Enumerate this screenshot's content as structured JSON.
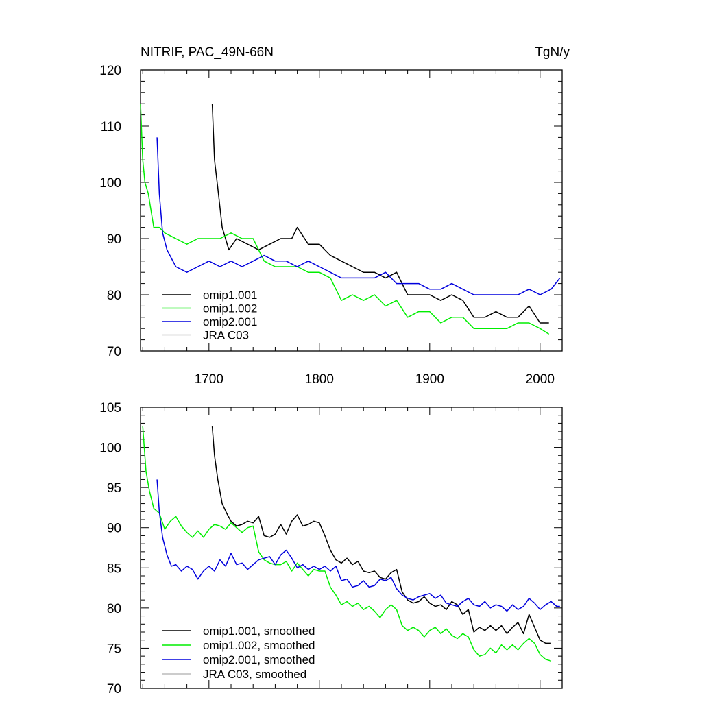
{
  "chart_data": [
    {
      "type": "line",
      "title": "NITRIF, PAC_49N-66N",
      "units": "TgN/y",
      "ylim": [
        70,
        120
      ],
      "xlim": [
        1638,
        2020
      ],
      "yticks": [
        70,
        80,
        90,
        100,
        110,
        120
      ],
      "xticks": [
        1700,
        1800,
        1900,
        2000
      ],
      "xtick_labels": [
        "1700",
        "1800",
        "1900",
        "2000"
      ],
      "ytick_labels": [
        "70",
        "80",
        "90",
        "100",
        "110",
        "120"
      ],
      "legend_position": "lower-left",
      "series": [
        {
          "name": "omip1.001",
          "color": "#000000",
          "x": [
            1703,
            1705,
            1708,
            1712,
            1718,
            1725,
            1735,
            1745,
            1755,
            1765,
            1775,
            1780,
            1790,
            1800,
            1810,
            1820,
            1830,
            1840,
            1850,
            1860,
            1870,
            1880,
            1890,
            1900,
            1910,
            1920,
            1930,
            1940,
            1950,
            1960,
            1970,
            1980,
            1990,
            2000,
            2008
          ],
          "y": [
            114,
            104,
            99,
            92,
            88,
            90,
            89,
            88,
            89,
            90,
            90,
            92,
            89,
            89,
            87,
            86,
            85,
            84,
            84,
            83,
            84,
            80,
            80,
            80,
            79,
            80,
            79,
            76,
            76,
            77,
            76,
            76,
            78,
            75,
            75
          ]
        },
        {
          "name": "omip1.002",
          "color": "#00ee00",
          "x": [
            1638,
            1640,
            1642,
            1645,
            1650,
            1655,
            1660,
            1670,
            1680,
            1690,
            1700,
            1710,
            1720,
            1730,
            1740,
            1750,
            1760,
            1770,
            1780,
            1790,
            1800,
            1810,
            1820,
            1830,
            1840,
            1850,
            1860,
            1870,
            1880,
            1890,
            1900,
            1910,
            1920,
            1930,
            1940,
            1950,
            1960,
            1970,
            1980,
            1990,
            2000,
            2008
          ],
          "y": [
            114,
            104,
            100,
            98,
            92,
            92,
            91,
            90,
            89,
            90,
            90,
            90,
            91,
            90,
            90,
            86,
            85,
            85,
            85,
            84,
            84,
            83,
            79,
            80,
            79,
            80,
            78,
            79,
            76,
            77,
            77,
            75,
            76,
            76,
            74,
            74,
            74,
            74,
            75,
            75,
            74,
            73
          ]
        },
        {
          "name": "omip2.001",
          "color": "#0000dd",
          "x": [
            1653,
            1655,
            1658,
            1662,
            1670,
            1680,
            1690,
            1700,
            1710,
            1720,
            1730,
            1740,
            1750,
            1760,
            1770,
            1780,
            1790,
            1800,
            1810,
            1820,
            1830,
            1840,
            1850,
            1860,
            1870,
            1880,
            1890,
            1900,
            1910,
            1920,
            1930,
            1940,
            1950,
            1960,
            1970,
            1980,
            1990,
            2000,
            2010,
            2018
          ],
          "y": [
            108,
            98,
            91,
            88,
            85,
            84,
            85,
            86,
            85,
            86,
            85,
            86,
            87,
            86,
            86,
            85,
            86,
            85,
            84,
            83,
            83,
            83,
            83,
            84,
            82,
            82,
            82,
            81,
            81,
            82,
            81,
            80,
            80,
            80,
            80,
            80,
            81,
            80,
            81,
            83
          ]
        },
        {
          "name": "JRA C03",
          "color": "#bbbbbb",
          "x": [],
          "y": []
        }
      ]
    },
    {
      "type": "line",
      "title": "",
      "ylim": [
        70,
        105
      ],
      "xlim": [
        1638,
        2020
      ],
      "yticks": [
        70,
        75,
        80,
        85,
        90,
        95,
        100,
        105
      ],
      "xticks": [
        1700,
        1800,
        1900,
        2000
      ],
      "ytick_labels": [
        "70",
        "75",
        "80",
        "85",
        "90",
        "95",
        "100",
        "105"
      ],
      "legend_position": "lower-left",
      "series": [
        {
          "name": "omip1.001, smoothed",
          "color": "#000000",
          "x": [
            1703,
            1705,
            1708,
            1712,
            1716,
            1720,
            1725,
            1730,
            1735,
            1740,
            1745,
            1750,
            1755,
            1760,
            1765,
            1770,
            1775,
            1780,
            1785,
            1790,
            1795,
            1800,
            1805,
            1810,
            1815,
            1820,
            1825,
            1830,
            1835,
            1840,
            1845,
            1850,
            1855,
            1860,
            1865,
            1870,
            1875,
            1880,
            1885,
            1890,
            1895,
            1900,
            1905,
            1910,
            1915,
            1920,
            1925,
            1930,
            1935,
            1940,
            1945,
            1950,
            1955,
            1960,
            1965,
            1970,
            1975,
            1980,
            1985,
            1990,
            1995,
            2000,
            2005,
            2010
          ],
          "y": [
            102.6,
            99,
            96,
            93,
            91.8,
            90.8,
            90.2,
            90.4,
            90.8,
            90.6,
            91.4,
            89,
            88.8,
            89.2,
            90.4,
            89.2,
            90.8,
            91.6,
            90.2,
            90.4,
            90.8,
            90.6,
            89,
            87.2,
            86,
            85.6,
            86.2,
            85.4,
            85.8,
            84.6,
            84.4,
            84.6,
            83.8,
            83.6,
            84.4,
            84.8,
            82,
            81,
            80.6,
            80.8,
            81.4,
            80.6,
            80.2,
            80.4,
            79.8,
            80.8,
            80.4,
            79.2,
            79.8,
            77,
            77.6,
            77.2,
            77.8,
            77.2,
            77.8,
            76.8,
            77.6,
            78.2,
            76.8,
            79.2,
            77.6,
            76,
            75.6,
            75.6
          ]
        },
        {
          "name": "omip1.002, smoothed",
          "color": "#00ee00",
          "x": [
            1640,
            1643,
            1646,
            1650,
            1655,
            1660,
            1665,
            1670,
            1675,
            1680,
            1685,
            1690,
            1695,
            1700,
            1705,
            1710,
            1715,
            1720,
            1725,
            1730,
            1735,
            1740,
            1745,
            1750,
            1755,
            1760,
            1765,
            1770,
            1775,
            1780,
            1785,
            1790,
            1795,
            1800,
            1805,
            1810,
            1815,
            1820,
            1825,
            1830,
            1835,
            1840,
            1845,
            1850,
            1855,
            1860,
            1865,
            1870,
            1875,
            1880,
            1885,
            1890,
            1895,
            1900,
            1905,
            1910,
            1915,
            1920,
            1925,
            1930,
            1935,
            1940,
            1945,
            1950,
            1955,
            1960,
            1965,
            1970,
            1975,
            1980,
            1985,
            1990,
            1995,
            2000,
            2005,
            2010
          ],
          "y": [
            102.6,
            97,
            94.6,
            92.4,
            91.8,
            89.8,
            90.8,
            91.4,
            90.2,
            89.4,
            88.8,
            89.6,
            88.8,
            89.8,
            90.4,
            90.2,
            89.8,
            90.6,
            90,
            89.4,
            90,
            90.2,
            87,
            86,
            85.6,
            85.4,
            85.4,
            85.8,
            84.6,
            85.6,
            84.8,
            84,
            84.8,
            84.6,
            84.6,
            82.6,
            81.6,
            80.4,
            80.8,
            80.2,
            80.6,
            79.8,
            80.2,
            79.6,
            78.8,
            79.8,
            80.4,
            79.8,
            77.8,
            77.2,
            77.6,
            77.2,
            76.4,
            77.2,
            77.6,
            76.8,
            77.4,
            76.6,
            76.2,
            76.8,
            76.4,
            74.8,
            74,
            74.2,
            75,
            74.4,
            75.4,
            74.8,
            75.4,
            74.8,
            75.6,
            76.2,
            75.6,
            74.2,
            73.6,
            73.4
          ]
        },
        {
          "name": "omip2.001, smoothed",
          "color": "#0000dd",
          "x": [
            1653,
            1655,
            1658,
            1662,
            1666,
            1670,
            1675,
            1680,
            1685,
            1690,
            1695,
            1700,
            1705,
            1710,
            1715,
            1720,
            1725,
            1730,
            1735,
            1740,
            1745,
            1750,
            1755,
            1760,
            1765,
            1770,
            1775,
            1780,
            1785,
            1790,
            1795,
            1800,
            1805,
            1810,
            1815,
            1820,
            1825,
            1830,
            1835,
            1840,
            1845,
            1850,
            1855,
            1860,
            1865,
            1870,
            1875,
            1880,
            1885,
            1890,
            1895,
            1900,
            1905,
            1910,
            1915,
            1920,
            1925,
            1930,
            1935,
            1940,
            1945,
            1950,
            1955,
            1960,
            1965,
            1970,
            1975,
            1980,
            1985,
            1990,
            1995,
            2000,
            2005,
            2010,
            2015,
            2018
          ],
          "y": [
            96,
            92,
            88.8,
            86.6,
            85.2,
            85.4,
            84.6,
            85.2,
            84.8,
            83.6,
            84.6,
            85.2,
            84.6,
            86,
            85.2,
            86.8,
            85.4,
            85.6,
            84.8,
            85.4,
            86,
            86.2,
            86.4,
            85.4,
            86.6,
            87.2,
            86.2,
            85,
            85.4,
            84.8,
            85.2,
            84.8,
            85.2,
            84.6,
            85.2,
            83.4,
            83.6,
            82.6,
            82.8,
            83.4,
            82.6,
            82.8,
            83.6,
            83.4,
            83.8,
            82.4,
            81.6,
            81.2,
            81,
            81.4,
            81.6,
            81.8,
            81.2,
            81.6,
            80.6,
            80.4,
            80.2,
            80.8,
            81.2,
            80.4,
            80.2,
            80.8,
            80,
            80.4,
            80.2,
            79.6,
            80.4,
            79.8,
            80.2,
            81.2,
            80.6,
            79.8,
            80.4,
            80.8,
            80.2,
            80.2
          ]
        },
        {
          "name": "JRA C03, smoothed",
          "color": "#bbbbbb",
          "x": [],
          "y": []
        }
      ]
    }
  ]
}
